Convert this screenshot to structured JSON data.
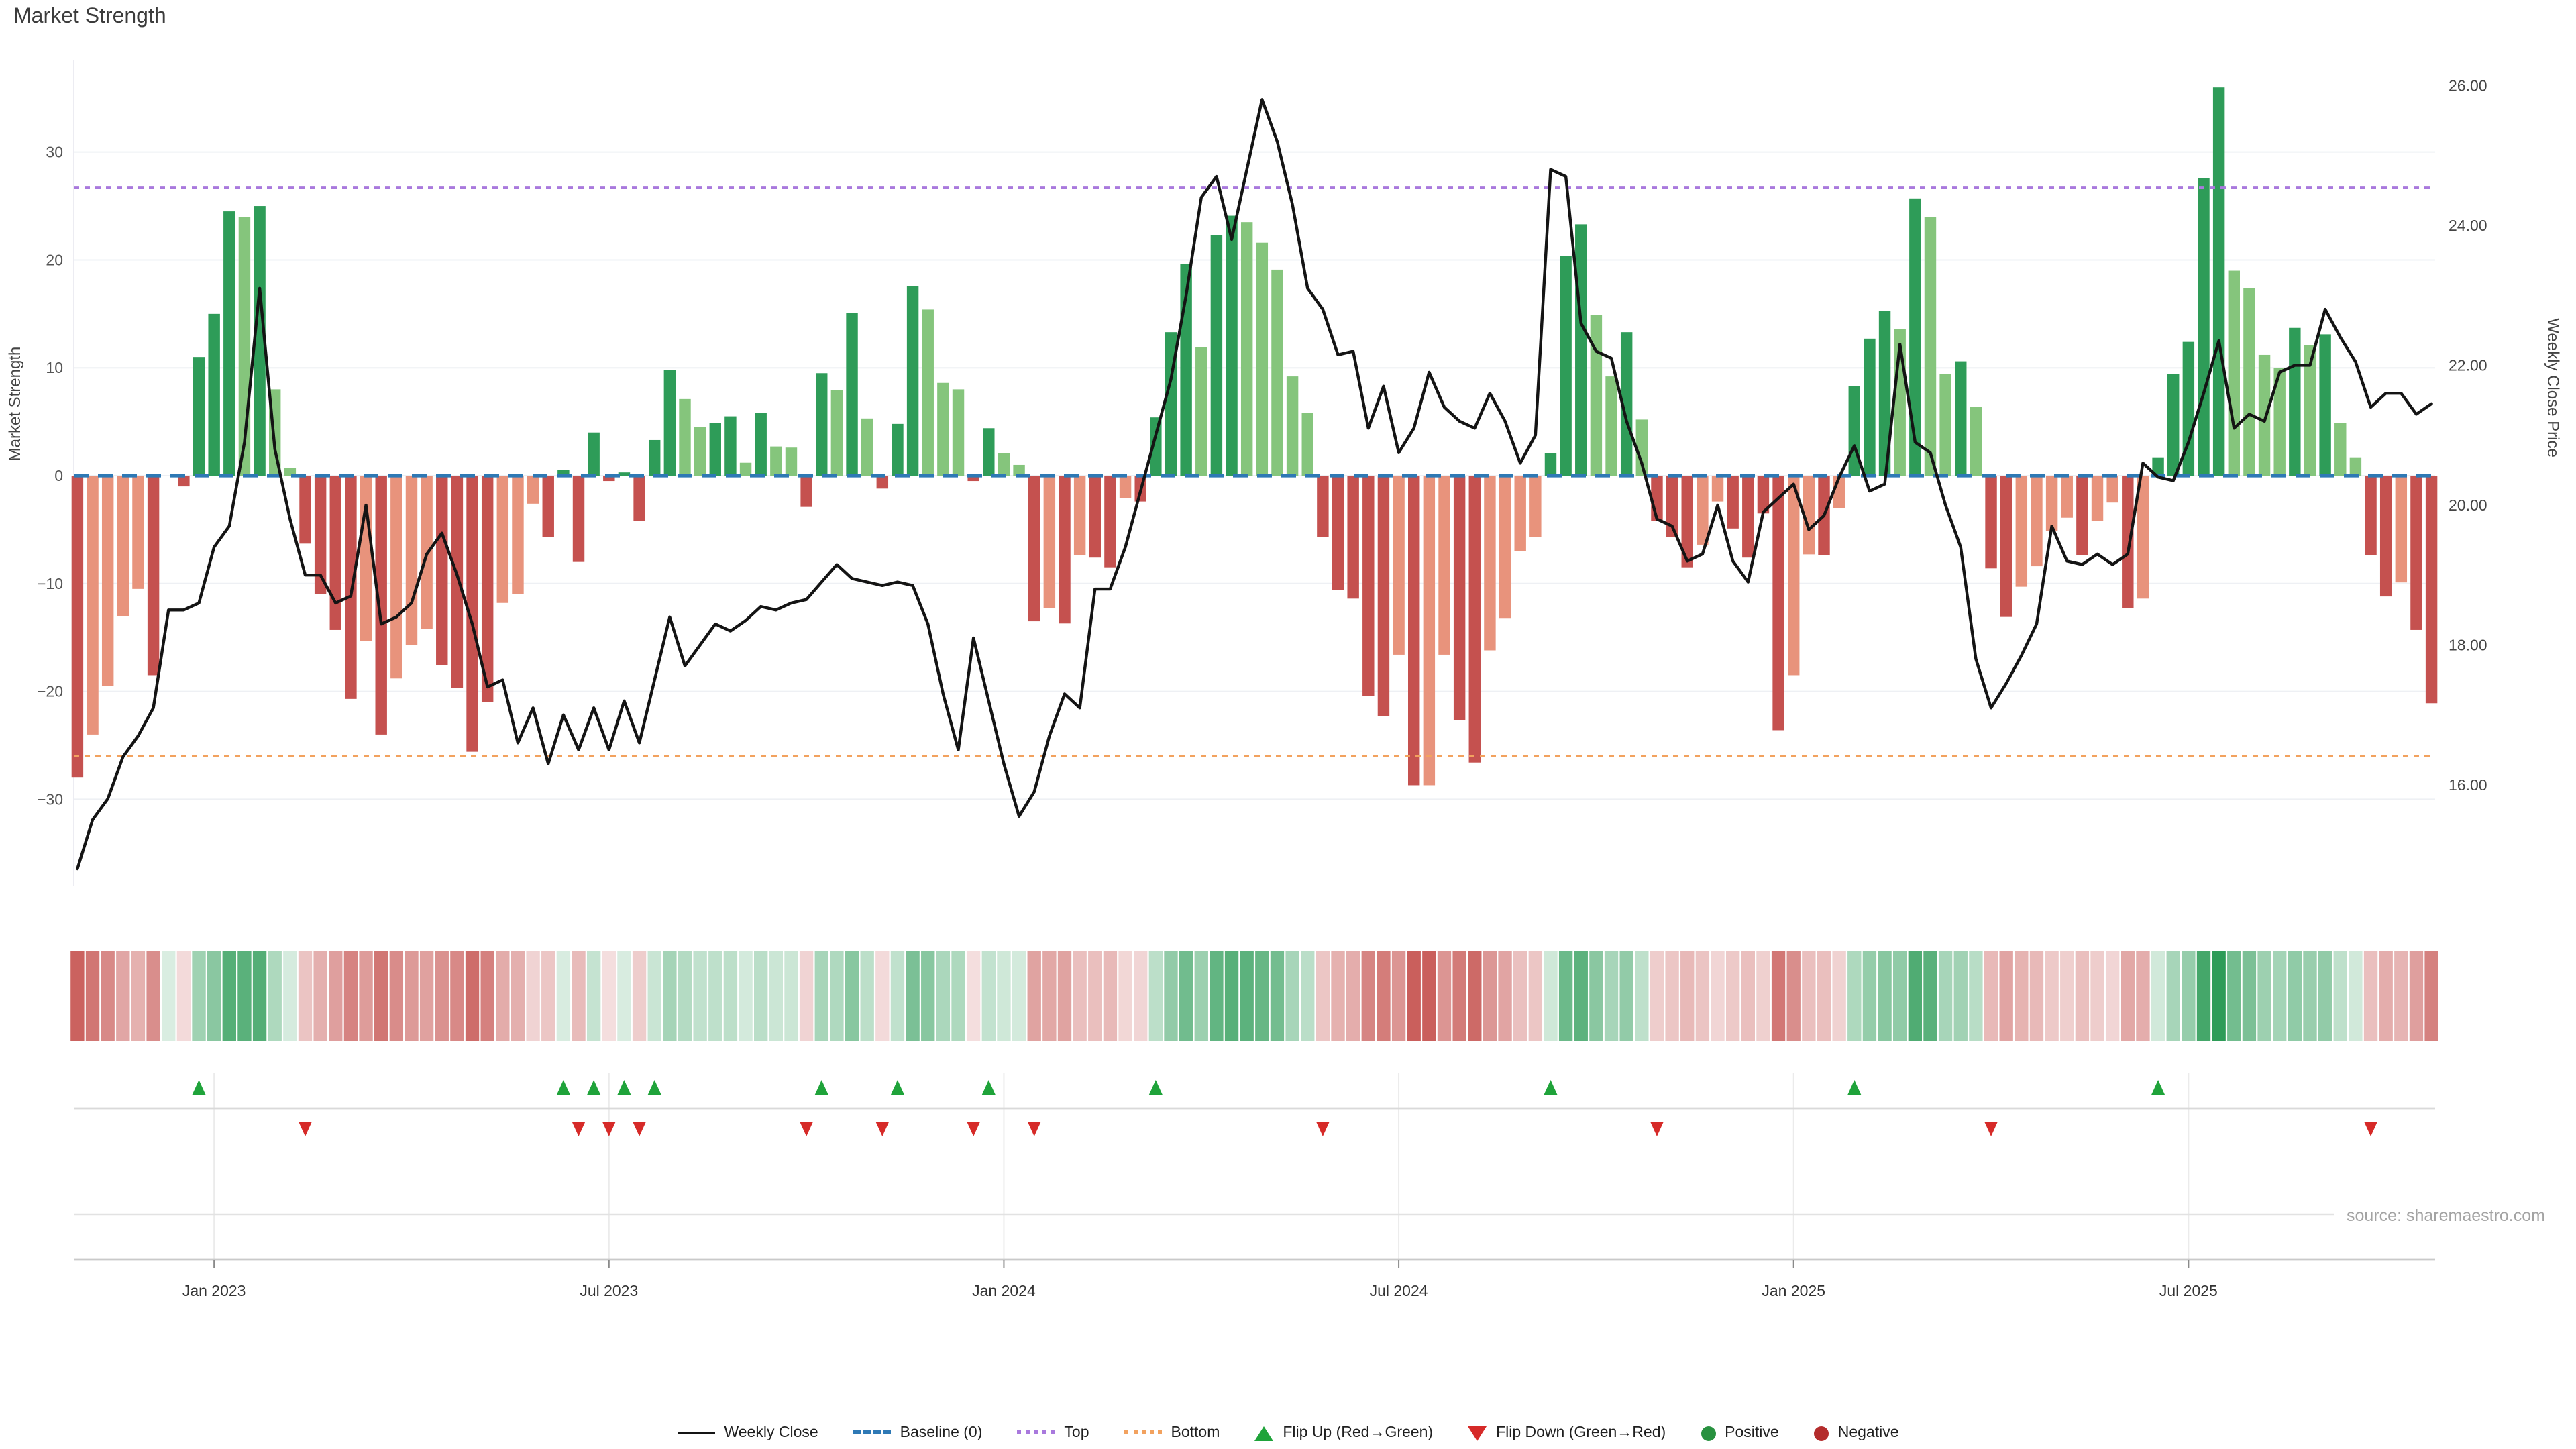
{
  "page": {
    "title": "Market Strength",
    "source_note": "source: sharemaestro.com"
  },
  "legend": {
    "items": [
      {
        "label": "Weekly Close",
        "swatch": "black-line"
      },
      {
        "label": "Baseline (0)",
        "swatch": "blue-dashed-line"
      },
      {
        "label": "Top",
        "swatch": "purple-dotted-line"
      },
      {
        "label": "Bottom",
        "swatch": "orange-dotted-line"
      },
      {
        "label": "Flip Up (Red→Green)",
        "swatch": "green-up-triangle"
      },
      {
        "label": "Flip Down (Green→Red)",
        "swatch": "red-down-triangle"
      },
      {
        "label": "Positive",
        "swatch": "green-circle"
      },
      {
        "label": "Negative",
        "swatch": "dark-red-circle"
      }
    ]
  },
  "chart_data": {
    "type": "bar",
    "title": "Market Strength",
    "left_axis": {
      "label": "Market Strength",
      "tick_labels": [
        "30",
        "20",
        "10",
        "0",
        "−10",
        "−20",
        "−30"
      ],
      "tick_values": [
        30,
        20,
        10,
        0,
        -10,
        -20,
        -30
      ],
      "range": [
        -38,
        38.5
      ]
    },
    "right_axis": {
      "label": "Weekly Close Price",
      "tick_labels": [
        "26.00",
        "24.00",
        "22.00",
        "20.00",
        "18.00",
        "16.00"
      ],
      "tick_values": [
        26,
        24,
        22,
        20,
        18,
        16
      ],
      "range": [
        14.56,
        26.36
      ]
    },
    "x_ticks": [
      {
        "label": "Jan 2023",
        "week": 9
      },
      {
        "label": "Jul 2023",
        "week": 35
      },
      {
        "label": "Jan 2024",
        "week": 61
      },
      {
        "label": "Jul 2024",
        "week": 87
      },
      {
        "label": "Jan 2025",
        "week": 113
      },
      {
        "label": "Jul 2025",
        "week": 139
      }
    ],
    "reference_lines": {
      "baseline": {
        "value": 0,
        "color": "#2e79b5",
        "style": "dashed"
      },
      "top": {
        "value": 26.7,
        "color": "#a979dd",
        "style": "dotted"
      },
      "bottom": {
        "value": -26.0,
        "color": "#f2a25f",
        "style": "dotted"
      }
    },
    "palette": {
      "dg": "#2e9c58",
      "lg": "#85c57c",
      "s": "#e8937c",
      "dr": "#c5514f",
      "line": "#141414",
      "flip_up": "#1fa33a",
      "flip_down": "#d62a28",
      "heat_pos": [
        46,
        156,
        88
      ],
      "heat_neg": [
        197,
        81,
        78
      ]
    },
    "weeks": 156,
    "series": {
      "strength": {
        "name": "Market Strength",
        "values": [
          -28,
          -24,
          -19.5,
          -13,
          -10.5,
          -18.5,
          0,
          -1,
          11,
          15,
          24.5,
          24,
          25,
          8,
          0.7,
          -6.3,
          -11,
          -14.3,
          -20.7,
          -15.3,
          -24,
          -18.8,
          -15.7,
          -14.2,
          -17.6,
          -19.7,
          -25.6,
          -21,
          -11.8,
          -11,
          -2.6,
          -5.7,
          0.5,
          -8,
          4,
          -0.5,
          0.3,
          -4.2,
          3.3,
          9.8,
          7.1,
          4.5,
          4.9,
          5.5,
          1.2,
          5.8,
          2.7,
          2.6,
          -2.9,
          9.5,
          7.9,
          15.1,
          5.3,
          -1.2,
          4.8,
          17.6,
          15.4,
          8.6,
          8,
          -0.5,
          4.4,
          2.1,
          1,
          -13.5,
          -12.3,
          -13.7,
          -7.4,
          -7.6,
          -8.5,
          -2.1,
          -2.4,
          5.4,
          13.3,
          19.6,
          11.9,
          22.3,
          24.1,
          23.5,
          21.6,
          19.1,
          9.2,
          5.8,
          -5.7,
          -10.6,
          -11.4,
          -20.4,
          -22.3,
          -16.6,
          -28.7,
          -28.7,
          -16.6,
          -22.7,
          -26.6,
          -16.2,
          -13.2,
          -7,
          -5.7,
          2.1,
          20.4,
          23.3,
          14.9,
          9.2,
          13.3,
          5.2,
          -4.2,
          -5.7,
          -8.5,
          -6.4,
          -2.4,
          -4.9,
          -7.6,
          -3.5,
          -23.6,
          -18.5,
          -7.3,
          -7.4,
          -3,
          8.3,
          12.7,
          15.3,
          13.6,
          25.7,
          24,
          9.4,
          10.6,
          6.4,
          -8.6,
          -13.1,
          -10.3,
          -8.4,
          -5.1,
          -3.9,
          -7.4,
          -4.2,
          -2.5,
          -12.3,
          -11.4,
          1.7,
          9.4,
          12.4,
          27.6,
          36,
          19,
          17.4,
          11.2,
          10,
          13.7,
          12.1,
          13.1,
          4.9,
          1.7,
          -7.4,
          -11.2,
          -9.9,
          -14.3,
          -21.1
        ],
        "bar_shades": [
          "dr",
          "s",
          "s",
          "s",
          "s",
          "dr",
          "s",
          "dr",
          "dg",
          "dg",
          "dg",
          "lg",
          "dg",
          "lg",
          "lg",
          "dr",
          "dr",
          "dr",
          "dr",
          "s",
          "dr",
          "s",
          "s",
          "s",
          "dr",
          "dr",
          "dr",
          "dr",
          "s",
          "s",
          "s",
          "dr",
          "dg",
          "dr",
          "dg",
          "dr",
          "dg",
          "dr",
          "dg",
          "dg",
          "lg",
          "lg",
          "dg",
          "dg",
          "lg",
          "dg",
          "lg",
          "lg",
          "dr",
          "dg",
          "lg",
          "dg",
          "lg",
          "dr",
          "dg",
          "dg",
          "lg",
          "lg",
          "lg",
          "dr",
          "dg",
          "lg",
          "lg",
          "dr",
          "s",
          "dr",
          "s",
          "dr",
          "dr",
          "s",
          "dr",
          "dg",
          "dg",
          "dg",
          "lg",
          "dg",
          "dg",
          "lg",
          "lg",
          "lg",
          "lg",
          "lg",
          "dr",
          "dr",
          "dr",
          "dr",
          "dr",
          "s",
          "dr",
          "s",
          "s",
          "dr",
          "dr",
          "s",
          "s",
          "s",
          "s",
          "dg",
          "dg",
          "dg",
          "lg",
          "lg",
          "dg",
          "lg",
          "dr",
          "dr",
          "dr",
          "s",
          "s",
          "dr",
          "dr",
          "dr",
          "dr",
          "s",
          "s",
          "dr",
          "s",
          "dg",
          "dg",
          "dg",
          "lg",
          "dg",
          "lg",
          "lg",
          "dg",
          "lg",
          "dr",
          "dr",
          "s",
          "s",
          "s",
          "s",
          "dr",
          "s",
          "s",
          "dr",
          "s",
          "dg",
          "dg",
          "dg",
          "dg",
          "dg",
          "lg",
          "lg",
          "lg",
          "lg",
          "dg",
          "lg",
          "dg",
          "lg",
          "lg",
          "dr",
          "dr",
          "s",
          "dr",
          "dr"
        ]
      },
      "weekly_close": {
        "name": "Weekly Close",
        "values": [
          14.8,
          15.5,
          15.8,
          16.4,
          16.7,
          17.1,
          18.5,
          18.5,
          18.6,
          19.4,
          19.7,
          20.9,
          23.1,
          20.8,
          19.8,
          19.0,
          19.0,
          18.6,
          18.7,
          20.0,
          18.3,
          18.4,
          18.6,
          19.3,
          19.6,
          19.0,
          18.3,
          17.4,
          17.5,
          16.6,
          17.1,
          16.3,
          17.0,
          16.5,
          17.1,
          16.5,
          17.2,
          16.6,
          17.5,
          18.4,
          17.7,
          18.0,
          18.3,
          18.2,
          18.35,
          18.55,
          18.5,
          18.6,
          18.65,
          18.9,
          19.15,
          18.95,
          18.9,
          18.85,
          18.9,
          18.85,
          18.3,
          17.3,
          16.5,
          18.1,
          17.2,
          16.3,
          15.55,
          15.9,
          16.7,
          17.3,
          17.1,
          18.8,
          18.8,
          19.4,
          20.2,
          21.0,
          21.8,
          23.0,
          24.4,
          24.7,
          23.8,
          24.8,
          25.8,
          25.2,
          24.3,
          23.1,
          22.8,
          22.15,
          22.2,
          21.1,
          21.7,
          20.75,
          21.1,
          21.9,
          21.4,
          21.2,
          21.1,
          21.6,
          21.2,
          20.6,
          21.0,
          24.8,
          24.7,
          22.6,
          22.2,
          22.1,
          21.2,
          20.6,
          19.8,
          19.7,
          19.2,
          19.3,
          20.0,
          19.2,
          18.9,
          19.9,
          20.1,
          20.3,
          19.65,
          19.85,
          20.4,
          20.85,
          20.2,
          20.3,
          22.3,
          20.9,
          20.75,
          20.0,
          19.4,
          17.8,
          17.1,
          17.45,
          17.85,
          18.3,
          19.7,
          19.2,
          19.15,
          19.3,
          19.15,
          19.3,
          20.6,
          20.4,
          20.35,
          20.9,
          21.6,
          22.35,
          21.1,
          21.3,
          21.2,
          21.9,
          22.0,
          22.0,
          22.8,
          22.4,
          22.05,
          21.4,
          21.6,
          21.6,
          21.3,
          21.45
        ]
      }
    },
    "flip_up_weeks": [
      8,
      32,
      34,
      36,
      38,
      49,
      54,
      60,
      71,
      97,
      117,
      137
    ],
    "flip_down_weeks": [
      15,
      33,
      35,
      37,
      48,
      53,
      59,
      63,
      82,
      104,
      126,
      151
    ],
    "heatmap": {
      "description": "one cell per week, red-to-green diverging shade of strength value"
    },
    "grid": true,
    "legend_position": "bottom"
  }
}
